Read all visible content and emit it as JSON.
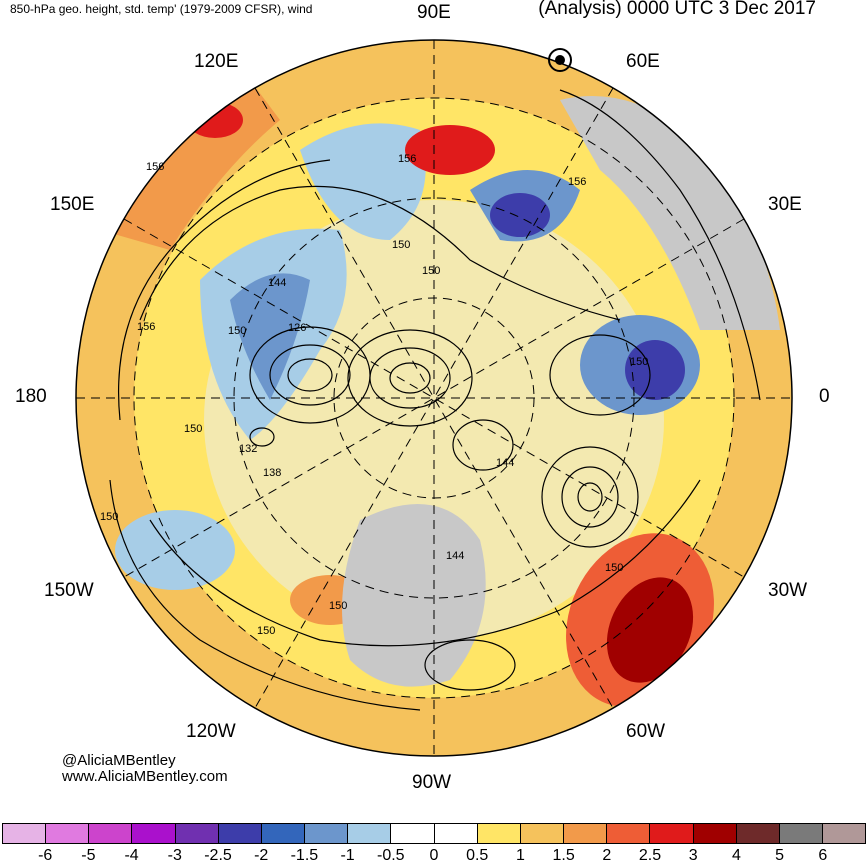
{
  "header": {
    "left": "850-hPa geo. height, std. temp' (1979-2009 CFSR), wind",
    "right": "(Analysis) 0000 UTC 3 Dec 2017"
  },
  "longitudes": {
    "deg90E": "90E",
    "deg60E": "60E",
    "deg120E": "120E",
    "deg30E": "30E",
    "deg150E": "150E",
    "deg0": "0",
    "deg180": "180",
    "deg150W": "150W",
    "deg30W": "30W",
    "deg120W": "120W",
    "deg60W": "60W",
    "deg90W": "90W"
  },
  "contour_labels": [
    "156",
    "156",
    "156",
    "150",
    "150",
    "150",
    "144",
    "156",
    "126",
    "150",
    "132",
    "138",
    "150",
    "150",
    "144",
    "144",
    "150",
    "150",
    "150"
  ],
  "credit": {
    "handle": "@AliciaMBentley",
    "site": "www.AliciaMBentley.com"
  },
  "colorbar": {
    "colors": [
      "#e6b3e6",
      "#e07ae0",
      "#cc44cc",
      "#aa11cc",
      "#7030b0",
      "#3d3daa",
      "#3366bb",
      "#6c96cc",
      "#a7cde7",
      "#ffffff",
      "#ffffff",
      "#ffe566",
      "#f5c25c",
      "#f29a4a",
      "#ee5d36",
      "#e01b1b",
      "#a00000",
      "#6e2a2a",
      "#7a7a7a",
      "#b09898"
    ],
    "ticks": [
      "-6",
      "-5",
      "-4",
      "-3",
      "-2.5",
      "-2",
      "-1.5",
      "-1",
      "-0.5",
      "0",
      "0.5",
      "1",
      "1.5",
      "2",
      "2.5",
      "3",
      "4",
      "5",
      "6"
    ]
  }
}
